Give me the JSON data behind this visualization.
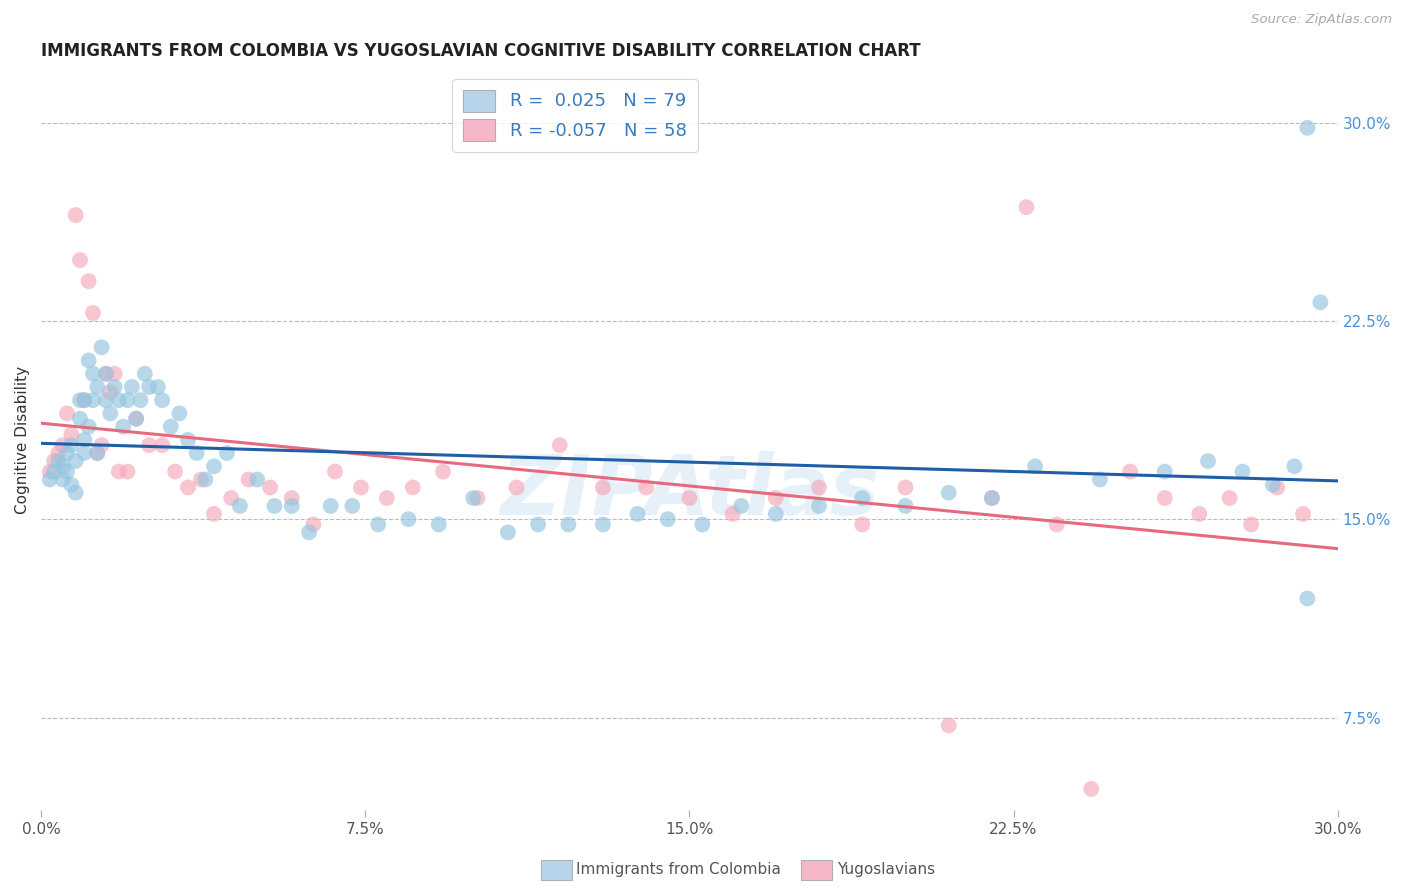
{
  "title": "IMMIGRANTS FROM COLOMBIA VS YUGOSLAVIAN COGNITIVE DISABILITY CORRELATION CHART",
  "source": "Source: ZipAtlas.com",
  "ylabel": "Cognitive Disability",
  "xlim": [
    0.0,
    0.3
  ],
  "ylim": [
    0.04,
    0.32
  ],
  "ytick_positions": [
    0.075,
    0.15,
    0.225,
    0.3
  ],
  "ytick_labels": [
    "7.5%",
    "15.0%",
    "22.5%",
    "30.0%"
  ],
  "xtick_positions": [
    0.0,
    0.075,
    0.15,
    0.225,
    0.3
  ],
  "xticklabels": [
    "0.0%",
    "7.5%",
    "15.0%",
    "22.5%",
    "30.0%"
  ],
  "grid_color": "#bbbbbb",
  "background_color": "#ffffff",
  "watermark": "ZIPAtlas",
  "colombia_color": "#93c4e0",
  "yugoslavia_color": "#f4a8b8",
  "colombia_R": 0.025,
  "colombia_N": 79,
  "yugoslavia_R": -0.057,
  "yugoslavia_N": 58,
  "colombia_line_color": "#1e5fa8",
  "yugoslavia_line_color": "#e8697d",
  "legend_label_colombia": "Immigrants from Colombia",
  "legend_label_yugoslavia": "Yugoslavians",
  "colombia_x": [
    0.002,
    0.003,
    0.004,
    0.005,
    0.005,
    0.006,
    0.006,
    0.007,
    0.007,
    0.008,
    0.008,
    0.009,
    0.009,
    0.01,
    0.01,
    0.01,
    0.011,
    0.011,
    0.012,
    0.012,
    0.013,
    0.013,
    0.014,
    0.015,
    0.015,
    0.016,
    0.017,
    0.018,
    0.019,
    0.02,
    0.021,
    0.022,
    0.023,
    0.024,
    0.025,
    0.027,
    0.028,
    0.03,
    0.032,
    0.034,
    0.036,
    0.038,
    0.04,
    0.043,
    0.046,
    0.05,
    0.054,
    0.058,
    0.062,
    0.067,
    0.072,
    0.078,
    0.085,
    0.092,
    0.1,
    0.108,
    0.115,
    0.122,
    0.13,
    0.138,
    0.145,
    0.153,
    0.162,
    0.17,
    0.18,
    0.19,
    0.2,
    0.21,
    0.22,
    0.23,
    0.245,
    0.26,
    0.27,
    0.278,
    0.285,
    0.29,
    0.293,
    0.293,
    0.296
  ],
  "colombia_y": [
    0.165,
    0.168,
    0.172,
    0.165,
    0.17,
    0.168,
    0.175,
    0.163,
    0.178,
    0.16,
    0.172,
    0.188,
    0.195,
    0.175,
    0.18,
    0.195,
    0.185,
    0.21,
    0.195,
    0.205,
    0.175,
    0.2,
    0.215,
    0.195,
    0.205,
    0.19,
    0.2,
    0.195,
    0.185,
    0.195,
    0.2,
    0.188,
    0.195,
    0.205,
    0.2,
    0.2,
    0.195,
    0.185,
    0.19,
    0.18,
    0.175,
    0.165,
    0.17,
    0.175,
    0.155,
    0.165,
    0.155,
    0.155,
    0.145,
    0.155,
    0.155,
    0.148,
    0.15,
    0.148,
    0.158,
    0.145,
    0.148,
    0.148,
    0.148,
    0.152,
    0.15,
    0.148,
    0.155,
    0.152,
    0.155,
    0.158,
    0.155,
    0.16,
    0.158,
    0.17,
    0.165,
    0.168,
    0.172,
    0.168,
    0.163,
    0.17,
    0.298,
    0.12,
    0.232
  ],
  "yugoslavia_x": [
    0.002,
    0.003,
    0.004,
    0.005,
    0.006,
    0.007,
    0.008,
    0.009,
    0.01,
    0.011,
    0.012,
    0.013,
    0.014,
    0.015,
    0.016,
    0.017,
    0.018,
    0.02,
    0.022,
    0.025,
    0.028,
    0.031,
    0.034,
    0.037,
    0.04,
    0.044,
    0.048,
    0.053,
    0.058,
    0.063,
    0.068,
    0.074,
    0.08,
    0.086,
    0.093,
    0.101,
    0.11,
    0.12,
    0.13,
    0.14,
    0.15,
    0.16,
    0.17,
    0.18,
    0.19,
    0.2,
    0.21,
    0.22,
    0.228,
    0.235,
    0.243,
    0.252,
    0.26,
    0.268,
    0.275,
    0.28,
    0.286,
    0.292
  ],
  "yugoslavia_y": [
    0.168,
    0.172,
    0.175,
    0.178,
    0.19,
    0.182,
    0.265,
    0.248,
    0.195,
    0.24,
    0.228,
    0.175,
    0.178,
    0.205,
    0.198,
    0.205,
    0.168,
    0.168,
    0.188,
    0.178,
    0.178,
    0.168,
    0.162,
    0.165,
    0.152,
    0.158,
    0.165,
    0.162,
    0.158,
    0.148,
    0.168,
    0.162,
    0.158,
    0.162,
    0.168,
    0.158,
    0.162,
    0.178,
    0.162,
    0.162,
    0.158,
    0.152,
    0.158,
    0.162,
    0.148,
    0.162,
    0.072,
    0.158,
    0.268,
    0.148,
    0.048,
    0.168,
    0.158,
    0.152,
    0.158,
    0.148,
    0.162,
    0.152
  ]
}
